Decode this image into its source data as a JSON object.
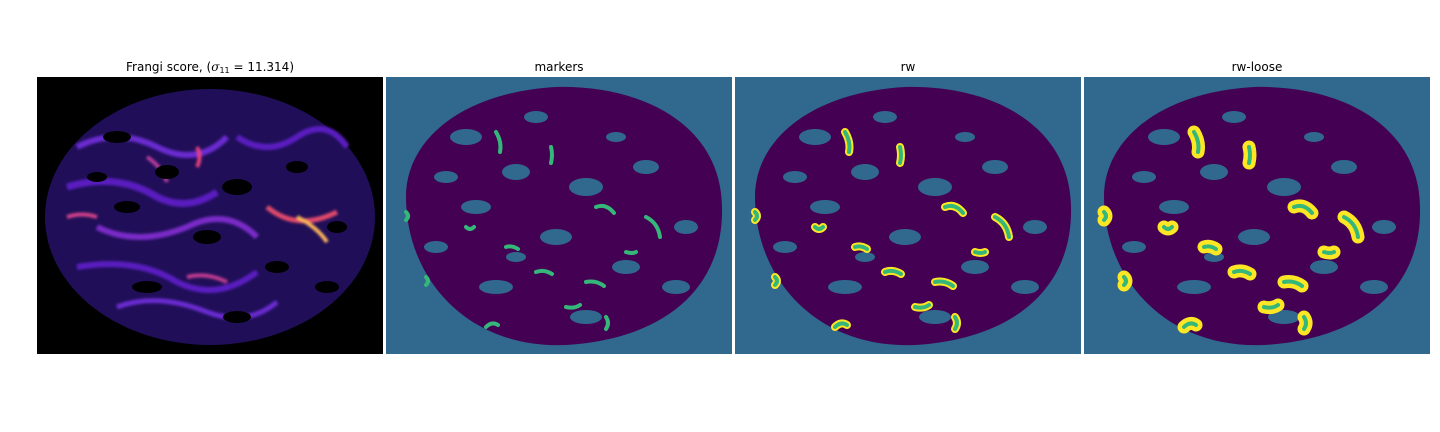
{
  "panels": [
    {
      "title_prefix": "Frangi score, (",
      "sigma_symbol": "σ",
      "sigma_subscript": "11",
      "title_suffix": " = 11.314)",
      "colormap": "magma",
      "background_color": "#000000"
    },
    {
      "title": "markers",
      "colormap": "viridis",
      "colors": {
        "background": "#31688e",
        "tissue": "#440154",
        "marker": "#35b779"
      }
    },
    {
      "title": "rw",
      "colormap": "viridis",
      "colors": {
        "background": "#31688e",
        "tissue": "#440154",
        "marker": "#35b779",
        "segmented": "#fde725"
      }
    },
    {
      "title": "rw-loose",
      "colormap": "viridis",
      "colors": {
        "background": "#31688e",
        "tissue": "#440154",
        "marker": "#35b779",
        "segmented": "#fde725"
      }
    }
  ]
}
